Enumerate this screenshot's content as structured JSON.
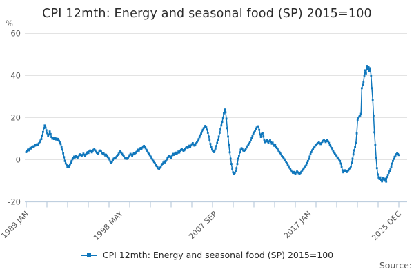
{
  "header": {
    "title": "CPI 12mth: Energy and seasonal food (SP) 2015=100"
  },
  "legend": {
    "label": "CPI 12mth: Energy and seasonal food (SP) 2015=100"
  },
  "footer": {
    "source_label": "Source:"
  },
  "colors": {
    "series": "#1077bc",
    "grid": "#e3e3e3",
    "axis": "#bfcfdf",
    "tick_label": "#595959",
    "title": "#2b2b2b"
  },
  "chart_data": {
    "type": "line",
    "title": "CPI 12mth: Energy and seasonal food (SP) 2015=100",
    "unit_label": "%",
    "xlabel": "",
    "ylabel": "%",
    "ylim": [
      -20,
      60
    ],
    "yticks": [
      60,
      40,
      20,
      0,
      -20
    ],
    "grid": true,
    "legend_position": "bottom-center",
    "frequency": "monthly",
    "start": "1989 JAN",
    "end": "2025 DEC",
    "xtick_labels": [
      {
        "label": "1989 JAN",
        "month": 0
      },
      {
        "label": "1998 MAY",
        "month": 112
      },
      {
        "label": "2007 SEP",
        "month": 224
      },
      {
        "label": "2017 JAN",
        "month": 336
      },
      {
        "label": "2025 DEC",
        "month": 443
      }
    ],
    "series": [
      {
        "name": "CPI 12mth: Energy and seasonal food (SP) 2015=100",
        "marker": "square",
        "values": [
          3.6,
          4.2,
          4.8,
          4.4,
          5.1,
          5.7,
          5.3,
          6.0,
          6.4,
          5.9,
          6.6,
          7.1,
          6.8,
          7.4,
          7.0,
          7.8,
          8.4,
          9.1,
          9.8,
          11.5,
          13.2,
          15.0,
          16.3,
          15.2,
          14.0,
          12.6,
          11.2,
          12.0,
          13.4,
          12.2,
          10.8,
          10.0,
          10.5,
          9.8,
          10.3,
          9.6,
          10.1,
          9.4,
          9.9,
          9.0,
          8.2,
          7.4,
          6.2,
          4.8,
          3.0,
          1.2,
          -0.6,
          -1.8,
          -2.6,
          -3.4,
          -2.9,
          -3.5,
          -2.2,
          -1.4,
          -0.6,
          0.2,
          0.9,
          1.5,
          1.1,
          1.8,
          1.3,
          0.7,
          1.4,
          2.1,
          2.6,
          2.2,
          1.7,
          2.3,
          2.9,
          2.4,
          1.9,
          2.5,
          3.0,
          3.6,
          3.2,
          3.9,
          4.4,
          4.0,
          3.5,
          4.1,
          4.7,
          5.1,
          4.5,
          3.8,
          3.3,
          2.8,
          3.4,
          4.0,
          4.4,
          3.9,
          3.2,
          2.7,
          3.1,
          2.5,
          2.0,
          2.4,
          1.8,
          1.2,
          0.6,
          0.1,
          -0.8,
          -1.4,
          -0.9,
          -0.2,
          0.5,
          1.0,
          0.6,
          1.2,
          1.7,
          2.3,
          2.9,
          3.5,
          4.0,
          3.4,
          2.8,
          2.2,
          1.6,
          1.0,
          0.5,
          0.9,
          0.4,
          0.8,
          1.5,
          2.2,
          2.8,
          2.4,
          1.9,
          2.5,
          3.1,
          2.6,
          3.2,
          3.7,
          4.2,
          4.8,
          4.3,
          5.0,
          5.6,
          5.1,
          5.7,
          6.3,
          6.6,
          6.1,
          5.4,
          4.7,
          4.1,
          3.4,
          2.8,
          2.1,
          1.5,
          0.8,
          0.2,
          -0.5,
          -1.1,
          -1.7,
          -2.4,
          -3.0,
          -3.5,
          -4.1,
          -4.4,
          -3.8,
          -3.2,
          -2.6,
          -2.0,
          -1.4,
          -0.8,
          -1.3,
          -0.6,
          0.1,
          0.7,
          1.3,
          1.9,
          1.4,
          0.9,
          1.6,
          2.2,
          2.8,
          2.3,
          2.9,
          3.4,
          2.8,
          3.3,
          3.9,
          3.4,
          4.1,
          4.7,
          5.2,
          4.6,
          4.0,
          4.5,
          5.1,
          5.7,
          6.2,
          5.6,
          6.1,
          6.7,
          6.2,
          6.8,
          7.4,
          7.9,
          7.3,
          6.7,
          7.2,
          7.8,
          8.4,
          9.0,
          9.8,
          10.7,
          11.6,
          12.4,
          13.3,
          14.2,
          15.0,
          15.6,
          16.1,
          15.4,
          14.3,
          12.8,
          11.0,
          9.2,
          7.5,
          6.0,
          4.8,
          4.2,
          3.6,
          4.4,
          5.3,
          6.5,
          8.0,
          9.5,
          11.0,
          12.8,
          14.5,
          16.3,
          18.0,
          20.0,
          22.0,
          23.9,
          22.5,
          19.5,
          15.0,
          11.0,
          7.0,
          3.5,
          0.5,
          -2.0,
          -4.5,
          -6.0,
          -6.8,
          -6.2,
          -5.4,
          -4.0,
          -2.0,
          0.5,
          2.0,
          3.5,
          4.8,
          5.5,
          5.0,
          4.4,
          3.9,
          4.5,
          5.2,
          5.8,
          6.4,
          7.0,
          7.7,
          8.5,
          9.4,
          10.3,
          11.2,
          12.1,
          13.0,
          13.8,
          14.6,
          15.3,
          15.8,
          15.9,
          14.2,
          12.0,
          10.8,
          12.3,
          12.6,
          11.0,
          9.5,
          8.3,
          8.8,
          9.4,
          8.6,
          8.0,
          8.8,
          9.2,
          8.4,
          7.6,
          8.1,
          7.3,
          6.6,
          7.0,
          6.2,
          5.5,
          4.9,
          4.3,
          3.7,
          3.1,
          2.5,
          1.9,
          1.3,
          0.8,
          0.2,
          -0.4,
          -1.0,
          -1.7,
          -2.4,
          -3.1,
          -3.8,
          -4.5,
          -5.1,
          -5.7,
          -6.2,
          -5.8,
          -6.3,
          -6.7,
          -6.1,
          -5.6,
          -6.0,
          -6.4,
          -6.8,
          -6.3,
          -5.8,
          -5.2,
          -4.7,
          -4.1,
          -3.6,
          -3.0,
          -2.3,
          -1.5,
          -0.6,
          0.4,
          1.5,
          2.6,
          3.6,
          4.5,
          5.2,
          5.8,
          6.3,
          6.8,
          7.2,
          7.6,
          7.9,
          8.2,
          7.8,
          7.4,
          7.9,
          8.5,
          9.0,
          9.4,
          8.9,
          8.4,
          8.8,
          9.3,
          8.7,
          8.0,
          7.2,
          6.4,
          5.6,
          4.8,
          4.1,
          3.4,
          2.8,
          2.2,
          1.6,
          1.1,
          0.6,
          0.1,
          -0.6,
          -1.8,
          -3.5,
          -5.0,
          -6.0,
          -5.5,
          -5.0,
          -5.4,
          -5.9,
          -5.5,
          -5.1,
          -4.6,
          -4.0,
          -3.2,
          -1.5,
          0.5,
          2.5,
          4.5,
          6.0,
          8.0,
          12.5,
          19.0,
          20.0,
          20.5,
          21.0,
          21.8,
          34.0,
          35.5,
          37.0,
          40.0,
          42.5,
          41.0,
          44.6,
          43.0,
          44.0,
          42.0,
          43.5,
          40.0,
          34.0,
          28.5,
          21.0,
          13.0,
          7.0,
          1.0,
          -4.0,
          -7.0,
          -8.5,
          -9.2,
          -8.4,
          -9.6,
          -10.3,
          -8.6,
          -9.4,
          -10.0,
          -9.0,
          -10.4,
          -8.2,
          -7.2,
          -6.2,
          -5.4,
          -4.6,
          -3.6,
          -1.8,
          -0.6,
          0.4,
          1.4,
          2.0,
          2.6,
          3.3,
          2.7,
          2.2
        ]
      }
    ]
  }
}
